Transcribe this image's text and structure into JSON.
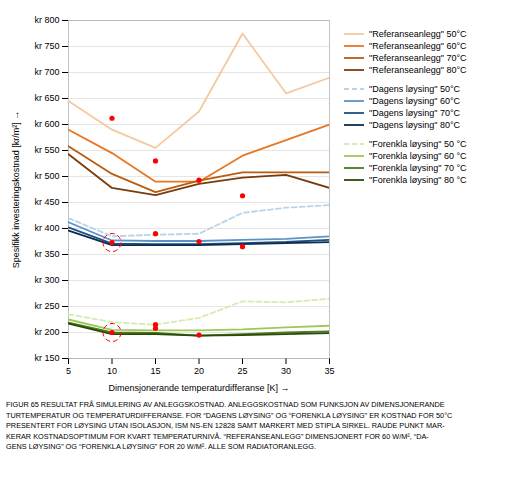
{
  "chart_data": {
    "type": "line",
    "xlabel": "Dimensjonerande temperaturdifferanse [K]",
    "ylabel": "Spesifikk investeringskostnad [kr/m²]",
    "caption": "FIGUR 65 RESULTAT FRÅ SIMULERING AV ANLEGGSKOSTNAD. ANLEGGSKOSTNAD SOM FUNKSJON AV DIMENSJONERANDE\nTURTEMPERATUR OG TEMPERATURDIFFERANSE. FOR “DAGENS LØYSING” OG “FORENKLA LØYSING” ER KOSTNAD FOR 50°C\nPRESENTERT FOR LØYSING UTAN ISOLASJON, ISM NS-EN 12828 SAMT MARKERT MED STIPLA SIRKEL. RAUDE PUNKT MAR-\nKERAR KOSTNADSOPTIMUM FOR KVART TEMPERATURNIVÅ. “REFERANSEANLEGG” DIMENSJONERT FOR 60 W/M², “DA-\nGENS LØYSING” OG “FORENKLA LØYSING” FOR 20 W/M². ALLE SOM RADIATORANLEGG.",
    "x": [
      5,
      10,
      15,
      20,
      25,
      30,
      35
    ],
    "series": [
      {
        "name": "\"Referanseanlegg\" 50°C",
        "color": "#f5c9a0",
        "line_style": "solid",
        "values": [
          645,
          590,
          555,
          625,
          775,
          660,
          690
        ]
      },
      {
        "name": "\"Referanseanlegg\" 60°C",
        "color": "#e87722",
        "line_style": "solid",
        "values": [
          590,
          545,
          490,
          490,
          540,
          570,
          600
        ]
      },
      {
        "name": "\"Referanseanlegg\" 70°C",
        "color": "#b85c10",
        "line_style": "solid",
        "values": [
          558,
          505,
          470,
          492,
          508,
          508,
          508
        ]
      },
      {
        "name": "\"Referanseanlegg\" 80°C",
        "color": "#7b3a0a",
        "line_style": "solid",
        "values": [
          543,
          478,
          464,
          486,
          498,
          503,
          478
        ]
      },
      {
        "name": "\"Dagens løysing\" 50°C",
        "color": "#b8d4e8",
        "line_style": "dashed",
        "values": [
          420,
          385,
          388,
          390,
          430,
          440,
          445
        ]
      },
      {
        "name": "\"Dagens løysing\" 60°C",
        "color": "#5b93c5",
        "line_style": "solid",
        "values": [
          412,
          377,
          376,
          376,
          378,
          380,
          385
        ]
      },
      {
        "name": "\"Dagens løysing\" 70°C",
        "color": "#1e4f82",
        "line_style": "solid",
        "values": [
          402,
          371,
          370,
          370,
          372,
          374,
          378
        ]
      },
      {
        "name": "\"Dagens løysing\" 80°C",
        "color": "#0d2d50",
        "line_style": "solid",
        "values": [
          396,
          368,
          368,
          368,
          370,
          372,
          374
        ]
      },
      {
        "name": "\"Forenkla løysing\" 50 °C",
        "color": "#d4ecb0",
        "line_style": "dashed",
        "values": [
          235,
          220,
          215,
          228,
          260,
          258,
          265
        ]
      },
      {
        "name": "\"Forenkla løysing\" 60 °C",
        "color": "#9ec858",
        "line_style": "solid",
        "values": [
          225,
          205,
          204,
          204,
          206,
          210,
          213
        ]
      },
      {
        "name": "\"Forenkla løysing\" 70 °C",
        "color": "#4a7a1a",
        "line_style": "solid",
        "values": [
          219,
          200,
          199,
          194,
          197,
          200,
          202
        ]
      },
      {
        "name": "\"Forenkla løysing\" 80 °C",
        "color": "#2a4a0a",
        "line_style": "solid",
        "values": [
          217,
          197,
          197,
          194,
          195,
          197,
          199
        ]
      },
      {
        "type": "scatter",
        "marker": "circle",
        "color": "red",
        "x": [
          10,
          15,
          20,
          25
        ],
        "values": [
          612,
          530,
          493,
          463
        ]
      },
      {
        "type": "scatter",
        "marker": "circle",
        "color": "red",
        "x": [
          10,
          15,
          20,
          25
        ],
        "values": [
          373,
          390,
          375,
          365
        ]
      },
      {
        "type": "scatter",
        "marker": "circle",
        "color": "red",
        "x": [
          10,
          15,
          15,
          20
        ],
        "values": [
          200,
          215,
          208,
          195
        ]
      },
      {
        "type": "scatter",
        "marker": "ring",
        "line_style": "dashed",
        "color": "red",
        "x": [
          10
        ],
        "values": [
          373
        ]
      },
      {
        "type": "scatter",
        "marker": "ring",
        "line_style": "dashed",
        "color": "red",
        "x": [
          10
        ],
        "values": [
          200
        ]
      }
    ],
    "xlim": [
      5,
      35
    ],
    "xticks": [
      5,
      10,
      15,
      20,
      25,
      30,
      35
    ],
    "ylim": [
      150,
      800
    ],
    "yticks": [
      {
        "value": 150,
        "label": "kr 150"
      },
      {
        "value": 200,
        "label": "kr 200"
      },
      {
        "value": 250,
        "label": "kr 250"
      },
      {
        "value": 300,
        "label": "kr 300"
      },
      {
        "value": 350,
        "label": "kr 350"
      },
      {
        "value": 400,
        "label": "kr 400"
      },
      {
        "value": 450,
        "label": "kr 450"
      },
      {
        "value": 500,
        "label": "kr 500"
      },
      {
        "value": 550,
        "label": "kr 550"
      },
      {
        "value": 600,
        "label": "kr 600"
      },
      {
        "value": 650,
        "label": "kr 650"
      },
      {
        "value": 700,
        "label": "kr 700"
      },
      {
        "value": 750,
        "label": "kr 750"
      },
      {
        "value": 800,
        "label": "kr 800"
      }
    ],
    "grid": "y",
    "legend": "right"
  }
}
